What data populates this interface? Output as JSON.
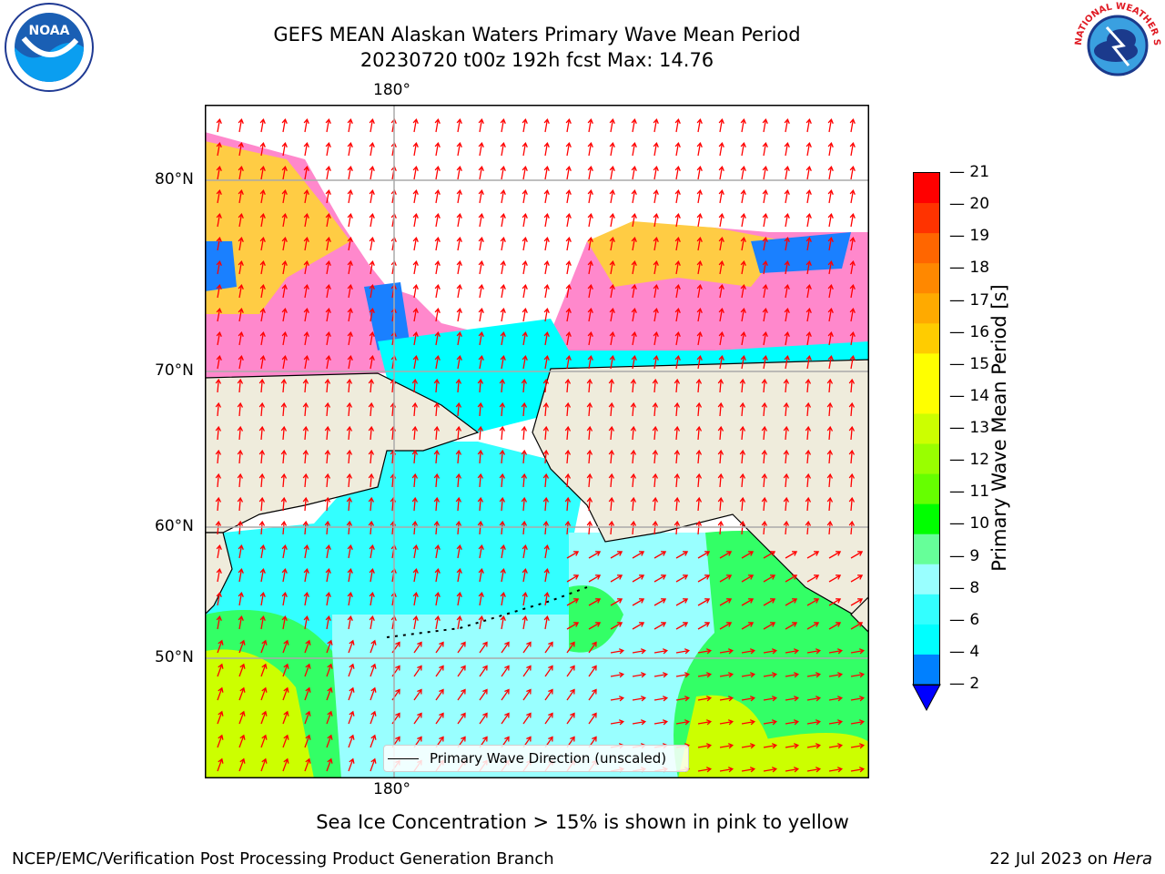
{
  "header": {
    "title": "GEFS MEAN Alaskan Waters Primary Wave Mean Period",
    "subtitle": "20230720 t00z 192h fcst   Max: 14.76"
  },
  "logos": {
    "noaa": "NOAA",
    "nws": "NATIONAL WEATHER SERVICE"
  },
  "map": {
    "lon_label_top": "180°",
    "lon_label_bottom": "180°",
    "lat_labels": [
      "80°N",
      "70°N",
      "60°N",
      "50°N"
    ],
    "legend_label": "Primary Wave Direction (unscaled)",
    "colors": {
      "land": "#efecdc",
      "ocean_low": "#00ffff",
      "ocean_mid": "#99ffff",
      "ocean_green": "#33ff66",
      "ocean_yellow": "#ccff00",
      "ice_pink": "#ff66cc",
      "ice_yellow": "#ffcc33",
      "ice_blue": "#0080ff",
      "arrow": "#ff0000"
    }
  },
  "colorbar": {
    "label": "Primary Wave Mean Period [s]",
    "ticks": [
      "21",
      "20",
      "19",
      "18",
      "17",
      "16",
      "15",
      "14",
      "13",
      "12",
      "11",
      "10",
      "9",
      "8",
      "6",
      "4",
      "2"
    ],
    "colors": [
      "#ff0000",
      "#ff3300",
      "#ff6600",
      "#ff8800",
      "#ffaa00",
      "#ffcc00",
      "#ffff00",
      "#ffff00",
      "#ccff00",
      "#99ff00",
      "#66ff00",
      "#00ff00",
      "#66ff99",
      "#99ffff",
      "#33ffff",
      "#00ffff",
      "#0080ff"
    ],
    "extend_color": "#0000ff"
  },
  "notes": {
    "ice": "Sea Ice Concentration > 15% is shown in pink to yellow"
  },
  "footer": {
    "left": "NCEP/EMC/Verification Post Processing Product Generation Branch",
    "date": "22 Jul 2023 on ",
    "host": "Hera"
  }
}
